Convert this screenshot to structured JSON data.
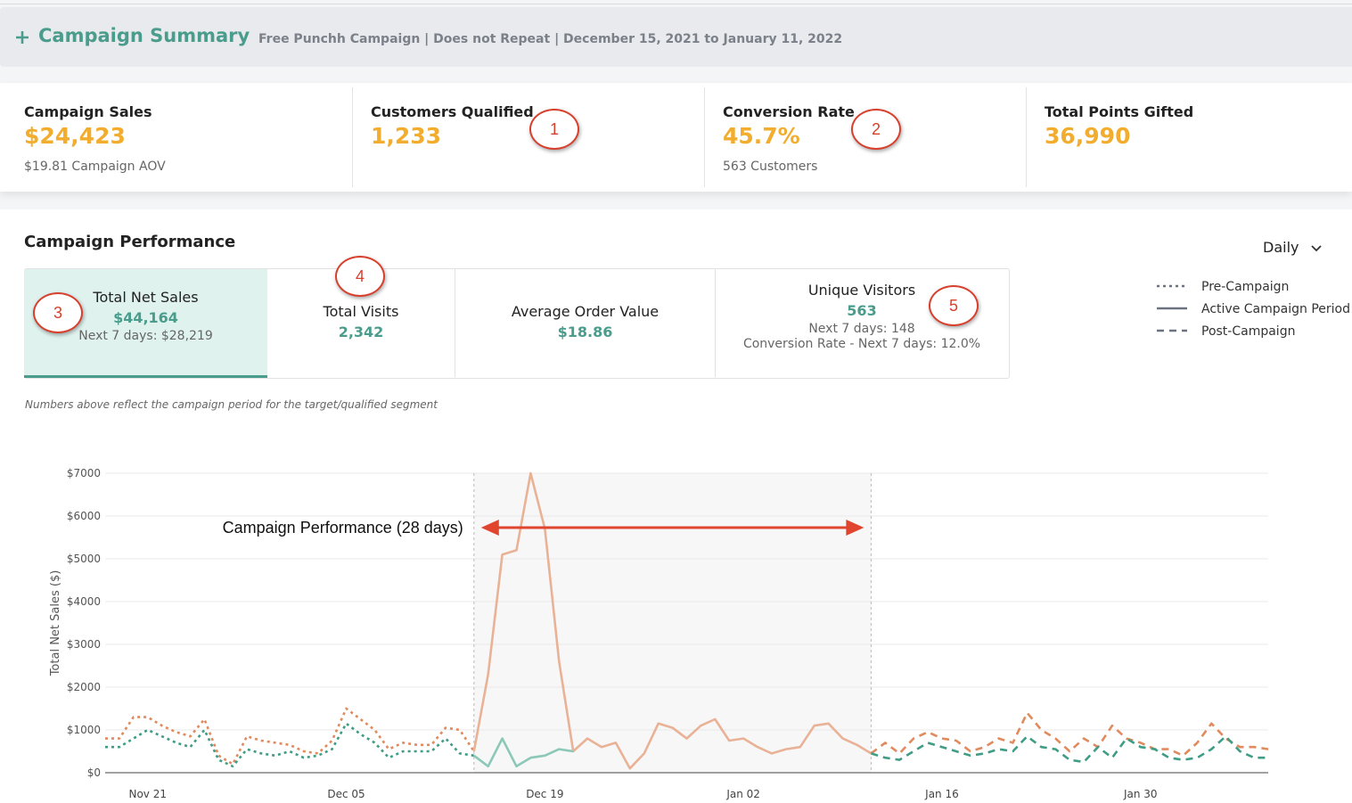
{
  "header": {
    "title": "Campaign Summary",
    "subtitle": "Free Punchh Campaign | Does not Repeat | December 15, 2021 to January 11, 2022"
  },
  "kpis": [
    {
      "label": "Campaign Sales",
      "value": "$24,423",
      "note": "$19.81 Campaign AOV"
    },
    {
      "label": "Customers Qualified",
      "value": "1,233"
    },
    {
      "label": "Conversion Rate",
      "value": "45.7%",
      "note": "563 Customers"
    },
    {
      "label": "Total Points Gifted",
      "value": "36,990"
    }
  ],
  "section": {
    "title": "Campaign Performance",
    "period": "Daily"
  },
  "tabs": [
    {
      "label": "Total Net Sales",
      "value": "$44,164",
      "notes": [
        "Next 7 days: $28,219"
      ]
    },
    {
      "label": "Total Visits",
      "value": "2,342"
    },
    {
      "label": "Average Order Value",
      "value": "$18.86"
    },
    {
      "label": "Unique Visitors",
      "value": "563",
      "notes": [
        "Next 7 days: 148",
        "Conversion Rate - Next 7 days: 12.0%"
      ]
    }
  ],
  "footnote": "Numbers above reflect the campaign period for the target/qualified segment",
  "callouts": [
    "1",
    "2",
    "3",
    "4",
    "5"
  ],
  "chart_data": {
    "type": "line",
    "ylabel": "Total Net Sales ($)",
    "annotation": "Campaign Performance (28 days)",
    "grid": true,
    "ylim": [
      0,
      7000
    ],
    "yticks": [
      {
        "value": 0,
        "label": "$0"
      },
      {
        "value": 1000,
        "label": "$1000"
      },
      {
        "value": 2000,
        "label": "$2000"
      },
      {
        "value": 3000,
        "label": "$3000"
      },
      {
        "value": 4000,
        "label": "$4000"
      },
      {
        "value": 5000,
        "label": "$5000"
      },
      {
        "value": 6000,
        "label": "$6000"
      },
      {
        "value": 7000,
        "label": "$7000"
      }
    ],
    "categories": [
      null,
      null,
      null,
      "Nov 21",
      null,
      null,
      null,
      null,
      null,
      null,
      null,
      null,
      null,
      null,
      null,
      null,
      null,
      "Dec 05",
      null,
      null,
      null,
      null,
      null,
      null,
      null,
      null,
      null,
      null,
      null,
      null,
      null,
      "Dec 19",
      null,
      null,
      null,
      null,
      null,
      null,
      null,
      null,
      null,
      null,
      null,
      null,
      null,
      "Jan 02",
      null,
      null,
      null,
      null,
      null,
      null,
      null,
      null,
      null,
      null,
      null,
      null,
      null,
      "Jan 16",
      null,
      null,
      null,
      null,
      null,
      null,
      null,
      null,
      null,
      null,
      null,
      null,
      null,
      "Jan 30",
      null,
      null,
      null,
      null,
      null,
      null,
      null,
      null,
      null
    ],
    "series": [
      {
        "name": "Pre-Campaign",
        "style": "dotted",
        "color": "#e08a5e",
        "values": [
          800,
          800,
          1300,
          1300,
          1100,
          950,
          850,
          1250,
          400,
          200,
          850,
          750,
          700,
          650,
          500,
          450,
          750,
          1500,
          1250,
          1000,
          550,
          700,
          650,
          650,
          1050,
          1000,
          500,
          null,
          null,
          null,
          null,
          null,
          null,
          null,
          null,
          null,
          null,
          null,
          null,
          null,
          null,
          null,
          null,
          null,
          null,
          null,
          null,
          null,
          null,
          null,
          null,
          null,
          null,
          null,
          null,
          null,
          null,
          null,
          null,
          null,
          null,
          null,
          null,
          null,
          null,
          null,
          null,
          null,
          null,
          null,
          null,
          null,
          null,
          null,
          null,
          null,
          null,
          null,
          null,
          null,
          null,
          null,
          null
        ]
      },
      {
        "name": "Active Campaign Period",
        "style": "solid",
        "color": "#e9b296",
        "values": [
          null,
          null,
          null,
          null,
          null,
          null,
          null,
          null,
          null,
          null,
          null,
          null,
          null,
          null,
          null,
          null,
          null,
          null,
          null,
          null,
          null,
          null,
          null,
          null,
          null,
          null,
          500,
          2300,
          5100,
          5200,
          7000,
          5700,
          2600,
          500,
          800,
          600,
          700,
          100,
          450,
          1150,
          1050,
          800,
          1100,
          1250,
          750,
          800,
          600,
          450,
          550,
          600,
          1100,
          1150,
          800,
          650,
          450,
          null,
          null,
          null,
          null,
          null,
          null,
          null,
          null,
          null,
          null,
          null,
          null,
          null,
          null,
          null,
          null,
          null,
          null,
          null,
          null,
          null,
          null,
          null,
          null,
          null,
          null,
          null,
          null
        ]
      },
      {
        "name": "Post-Campaign",
        "style": "dashed",
        "color": "#e08a5e",
        "values": [
          null,
          null,
          null,
          null,
          null,
          null,
          null,
          null,
          null,
          null,
          null,
          null,
          null,
          null,
          null,
          null,
          null,
          null,
          null,
          null,
          null,
          null,
          null,
          null,
          null,
          null,
          null,
          null,
          null,
          null,
          null,
          null,
          null,
          null,
          null,
          null,
          null,
          null,
          null,
          null,
          null,
          null,
          null,
          null,
          null,
          null,
          null,
          null,
          null,
          null,
          null,
          null,
          null,
          null,
          450,
          700,
          450,
          800,
          950,
          800,
          750,
          500,
          600,
          800,
          700,
          1400,
          1000,
          800,
          500,
          800,
          600,
          1100,
          800,
          700,
          550,
          550,
          400,
          700,
          1150,
          800,
          600,
          600,
          550
        ]
      },
      {
        "style": "dotted",
        "color": "#3f9c85",
        "values": [
          600,
          600,
          800,
          1000,
          850,
          700,
          600,
          1000,
          300,
          150,
          550,
          450,
          400,
          500,
          350,
          400,
          550,
          1150,
          900,
          700,
          350,
          500,
          500,
          500,
          800,
          450,
          400,
          null,
          null,
          null,
          null,
          null,
          null,
          null,
          null,
          null,
          null,
          null,
          null,
          null,
          null,
          null,
          null,
          null,
          null,
          null,
          null,
          null,
          null,
          null,
          null,
          null,
          null,
          null,
          null,
          null,
          null,
          null,
          null,
          null,
          null,
          null,
          null,
          null,
          null,
          null,
          null,
          null,
          null,
          null,
          null,
          null,
          null,
          null,
          null,
          null,
          null,
          null,
          null,
          null,
          null,
          null,
          null
        ]
      },
      {
        "style": "solid",
        "color": "#8cc8b8",
        "values": [
          null,
          null,
          null,
          null,
          null,
          null,
          null,
          null,
          null,
          null,
          null,
          null,
          null,
          null,
          null,
          null,
          null,
          null,
          null,
          null,
          null,
          null,
          null,
          null,
          null,
          null,
          400,
          150,
          800,
          150,
          350,
          400,
          550,
          500,
          null,
          null,
          null,
          null,
          null,
          null,
          null,
          null,
          null,
          null,
          null,
          null,
          null,
          null,
          null,
          null,
          null,
          null,
          null,
          null,
          null,
          null,
          null,
          null,
          null,
          null,
          null,
          null,
          null,
          null,
          null,
          null,
          null,
          null,
          null,
          null,
          null,
          null,
          null,
          null,
          null,
          null,
          null,
          null,
          null,
          null,
          null,
          null,
          null
        ]
      },
      {
        "style": "dashed",
        "color": "#3f9c85",
        "values": [
          null,
          null,
          null,
          null,
          null,
          null,
          null,
          null,
          null,
          null,
          null,
          null,
          null,
          null,
          null,
          null,
          null,
          null,
          null,
          null,
          null,
          null,
          null,
          null,
          null,
          null,
          null,
          null,
          null,
          null,
          null,
          null,
          null,
          null,
          null,
          null,
          null,
          null,
          null,
          null,
          null,
          null,
          null,
          null,
          null,
          null,
          null,
          null,
          null,
          null,
          null,
          null,
          null,
          null,
          450,
          350,
          300,
          500,
          700,
          600,
          500,
          400,
          450,
          550,
          500,
          850,
          600,
          550,
          300,
          250,
          600,
          350,
          800,
          600,
          550,
          350,
          300,
          350,
          550,
          850,
          500,
          350,
          350
        ]
      }
    ]
  }
}
